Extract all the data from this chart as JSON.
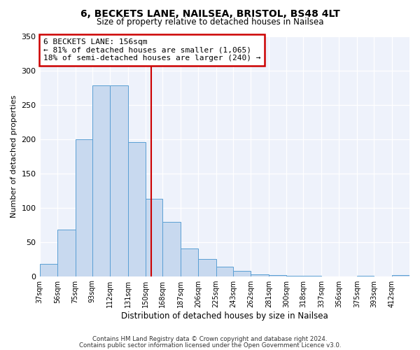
{
  "title": "6, BECKETS LANE, NAILSEA, BRISTOL, BS48 4LT",
  "subtitle": "Size of property relative to detached houses in Nailsea",
  "xlabel": "Distribution of detached houses by size in Nailsea",
  "ylabel": "Number of detached properties",
  "bar_color": "#c8d9ef",
  "bar_edge_color": "#5a9fd4",
  "background_color": "#eef2fb",
  "bin_labels": [
    "37sqm",
    "56sqm",
    "75sqm",
    "93sqm",
    "112sqm",
    "131sqm",
    "150sqm",
    "168sqm",
    "187sqm",
    "206sqm",
    "225sqm",
    "243sqm",
    "262sqm",
    "281sqm",
    "300sqm",
    "318sqm",
    "337sqm",
    "356sqm",
    "375sqm",
    "393sqm",
    "412sqm"
  ],
  "bar_heights": [
    18,
    68,
    200,
    278,
    278,
    195,
    113,
    79,
    40,
    25,
    14,
    8,
    3,
    2,
    1,
    1,
    0,
    0,
    1,
    0,
    2
  ],
  "bin_edges": [
    37,
    56,
    75,
    93,
    112,
    131,
    150,
    168,
    187,
    206,
    225,
    243,
    262,
    281,
    300,
    318,
    337,
    356,
    375,
    393,
    412,
    431
  ],
  "property_size": 156,
  "vline_color": "#cc0000",
  "annotation_box_color": "#cc0000",
  "annotation_title": "6 BECKETS LANE: 156sqm",
  "annotation_line1": "← 81% of detached houses are smaller (1,065)",
  "annotation_line2": "18% of semi-detached houses are larger (240) →",
  "ylim": [
    0,
    350
  ],
  "yticks": [
    0,
    50,
    100,
    150,
    200,
    250,
    300,
    350
  ],
  "footer1": "Contains HM Land Registry data © Crown copyright and database right 2024.",
  "footer2": "Contains public sector information licensed under the Open Government Licence v3.0."
}
